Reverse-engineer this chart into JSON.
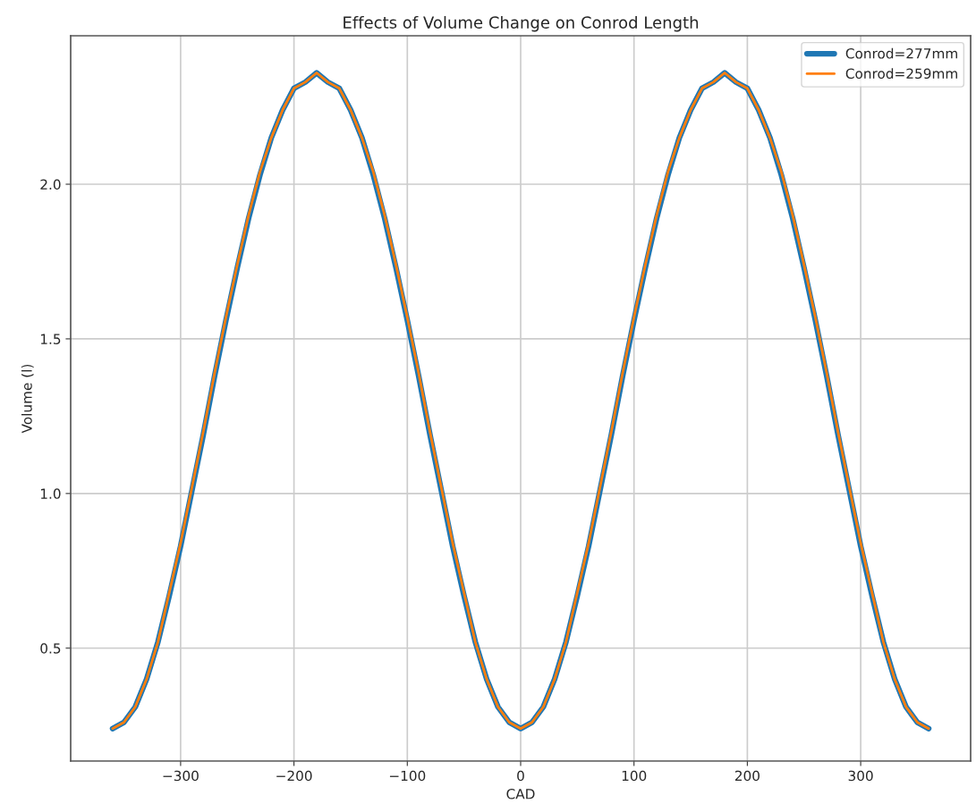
{
  "chart_data": {
    "type": "line",
    "title": "Effects of Volume Change on Conrod Length",
    "xlabel": "CAD",
    "ylabel": "Volume (l)",
    "x": [
      -360,
      -350,
      -340,
      -330,
      -320,
      -310,
      -300,
      -290,
      -280,
      -270,
      -260,
      -250,
      -240,
      -230,
      -220,
      -210,
      -200,
      -190,
      -180,
      -170,
      -160,
      -150,
      -140,
      -130,
      -120,
      -110,
      -100,
      -90,
      -80,
      -70,
      -60,
      -50,
      -40,
      -30,
      -20,
      -10,
      0,
      10,
      20,
      30,
      40,
      50,
      60,
      70,
      80,
      90,
      100,
      110,
      120,
      130,
      140,
      150,
      160,
      170,
      180,
      190,
      200,
      210,
      220,
      230,
      240,
      250,
      260,
      270,
      280,
      290,
      300,
      310,
      320,
      330,
      340,
      350,
      360
    ],
    "series": [
      {
        "name": "Conrod=277mm",
        "color": "#1f77b4",
        "values": [
          0.24,
          0.26,
          0.31,
          0.4,
          0.52,
          0.67,
          0.83,
          1.01,
          1.19,
          1.38,
          1.56,
          1.73,
          1.89,
          2.03,
          2.15,
          2.24,
          2.31,
          2.33,
          2.36,
          2.33,
          2.31,
          2.24,
          2.15,
          2.03,
          1.89,
          1.73,
          1.56,
          1.38,
          1.19,
          1.01,
          0.83,
          0.67,
          0.52,
          0.4,
          0.31,
          0.26,
          0.24,
          0.26,
          0.31,
          0.4,
          0.52,
          0.67,
          0.83,
          1.01,
          1.19,
          1.38,
          1.56,
          1.73,
          1.89,
          2.03,
          2.15,
          2.24,
          2.31,
          2.33,
          2.36,
          2.33,
          2.31,
          2.24,
          2.15,
          2.03,
          1.89,
          1.73,
          1.56,
          1.38,
          1.19,
          1.01,
          0.83,
          0.67,
          0.52,
          0.4,
          0.31,
          0.26,
          0.24
        ]
      },
      {
        "name": "Conrod=259mm",
        "color": "#ff7f0e",
        "values": [
          0.24,
          0.26,
          0.31,
          0.4,
          0.52,
          0.68,
          0.84,
          1.02,
          1.2,
          1.39,
          1.57,
          1.74,
          1.9,
          2.04,
          2.15,
          2.24,
          2.31,
          2.33,
          2.36,
          2.33,
          2.31,
          2.24,
          2.15,
          2.04,
          1.9,
          1.74,
          1.57,
          1.39,
          1.2,
          1.02,
          0.84,
          0.68,
          0.52,
          0.4,
          0.31,
          0.26,
          0.24,
          0.26,
          0.31,
          0.4,
          0.52,
          0.68,
          0.84,
          1.02,
          1.2,
          1.39,
          1.57,
          1.74,
          1.9,
          2.04,
          2.15,
          2.24,
          2.31,
          2.33,
          2.36,
          2.33,
          2.31,
          2.24,
          2.15,
          2.04,
          1.9,
          1.74,
          1.57,
          1.39,
          1.2,
          1.02,
          0.84,
          0.68,
          0.52,
          0.4,
          0.31,
          0.26,
          0.24
        ]
      }
    ],
    "xlim": [
      -397,
      397
    ],
    "ylim": [
      0.135,
      2.48
    ],
    "xticks": [
      {
        "value": -300,
        "label": "−300"
      },
      {
        "value": -200,
        "label": "−200"
      },
      {
        "value": -100,
        "label": "−100"
      },
      0,
      100,
      200,
      300
    ],
    "yticks": [
      {
        "value": 0.5,
        "label": "0.5"
      },
      {
        "value": 1.0,
        "label": "1.0"
      },
      {
        "value": 1.5,
        "label": "1.5"
      },
      {
        "value": 2.0,
        "label": "2.0"
      }
    ],
    "grid": true,
    "legend": "top right",
    "marker": "none",
    "line_style": "solid"
  }
}
